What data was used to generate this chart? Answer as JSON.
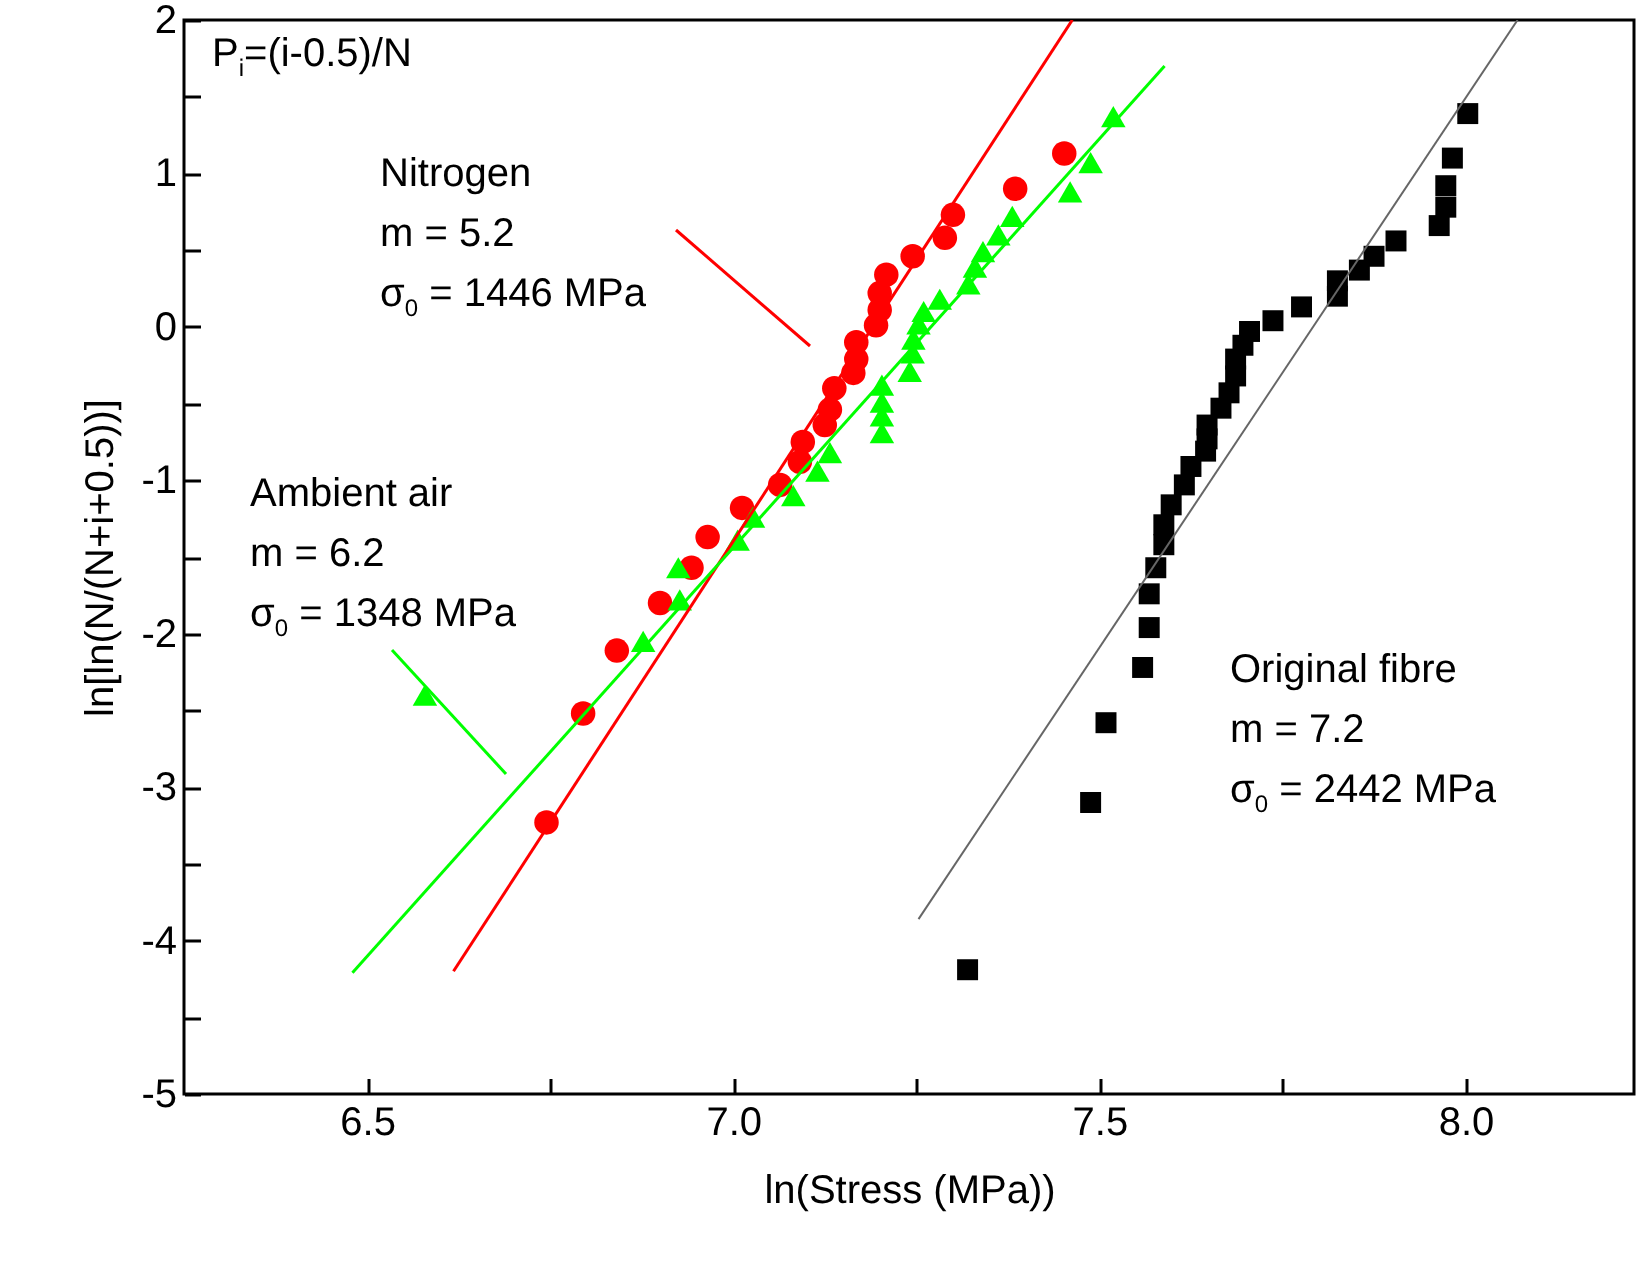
{
  "chart_data": {
    "type": "scatter",
    "xlabel": "ln(Stress (MPa))",
    "ylabel": "ln[ln(N/(N+i+0.5))]",
    "xlim": [
      6.25,
      8.23
    ],
    "ylim": [
      -5,
      2
    ],
    "xticks": [
      {
        "value": 6.5,
        "label": "6.5"
      },
      {
        "value": 6.75,
        "label": null
      },
      {
        "value": 7,
        "label": "7.0"
      },
      {
        "value": 7.25,
        "label": null
      },
      {
        "value": 7.5,
        "label": "7.5"
      },
      {
        "value": 7.75,
        "label": null
      },
      {
        "value": 8,
        "label": "8.0"
      }
    ],
    "yticks": [
      -5,
      {
        "value": -4.5,
        "label": null
      },
      -4,
      {
        "value": -3.5,
        "label": null
      },
      -3,
      {
        "value": -2.5,
        "label": null
      },
      -2,
      {
        "value": -1.5,
        "label": null
      },
      -1,
      {
        "value": -0.5,
        "label": null
      },
      0,
      {
        "value": 0.5,
        "label": null
      },
      1,
      {
        "value": 1.5,
        "label": null
      },
      2
    ],
    "annotations": [
      "P$_{i}$=(i-0.5)/N",
      "Nitrogen\nm = 5.2\nσ$_{0}$ = 1446 MPa",
      "Ambient air\nm = 6.2\nσ$_{0}$ = 1348 MPa",
      "Original fibre\nm = 7.2\nσ$_{0}$ = 2442 MPa"
    ],
    "series": [
      {
        "type": "scatter",
        "marker": "circle",
        "color": "#ff0000",
        "x": [
          6.745,
          6.795,
          6.841,
          6.9,
          6.943,
          6.965,
          7.012,
          7.064,
          7.091,
          7.095,
          7.125,
          7.132,
          7.138,
          7.164,
          7.168,
          7.168,
          7.195,
          7.2,
          7.2,
          7.209,
          7.245,
          7.289,
          7.3,
          7.385,
          7.452
        ],
        "values": [
          -3.23,
          -2.52,
          -2.11,
          -1.8,
          -1.57,
          -1.37,
          -1.18,
          -1.03,
          -0.88,
          -0.75,
          -0.64,
          -0.54,
          -0.4,
          -0.3,
          -0.21,
          -0.1,
          0.01,
          0.11,
          0.22,
          0.34,
          0.46,
          0.58,
          0.73,
          0.9,
          1.13
        ]
      },
      {
        "type": "scatter",
        "marker": "triangle",
        "color": "#00ff00",
        "x": [
          6.579,
          6.877,
          6.927,
          6.925,
          7.006,
          7.027,
          7.082,
          7.115,
          7.132,
          7.203,
          7.203,
          7.203,
          7.203,
          7.241,
          7.245,
          7.246,
          7.253,
          7.26,
          7.282,
          7.321,
          7.33,
          7.341,
          7.362,
          7.381,
          7.46,
          7.488,
          7.519
        ],
        "values": [
          -2.4,
          -2.05,
          -1.78,
          -1.57,
          -1.39,
          -1.24,
          -1.1,
          -0.94,
          -0.82,
          -0.69,
          -0.58,
          -0.49,
          -0.38,
          -0.29,
          -0.17,
          -0.08,
          0.02,
          0.1,
          0.18,
          0.28,
          0.39,
          0.49,
          0.6,
          0.72,
          0.88,
          1.07,
          1.37
        ]
      },
      {
        "type": "scatter",
        "marker": "square",
        "color": "#000000",
        "x": [
          7.32,
          7.488,
          7.509,
          7.559,
          7.568,
          7.568,
          7.577,
          7.588,
          7.588,
          7.598,
          7.616,
          7.625,
          7.645,
          7.647,
          7.647,
          7.666,
          7.677,
          7.686,
          7.686,
          7.696,
          7.705,
          7.737,
          7.776,
          7.825,
          7.825,
          7.855,
          7.875,
          7.905,
          7.964,
          7.973,
          7.973,
          7.982,
          8.003
        ],
        "values": [
          -4.19,
          -3.1,
          -2.58,
          -2.22,
          -1.96,
          -1.74,
          -1.57,
          -1.42,
          -1.29,
          -1.16,
          -1.03,
          -0.91,
          -0.81,
          -0.73,
          -0.64,
          -0.53,
          -0.43,
          -0.32,
          -0.21,
          -0.12,
          -0.03,
          0.04,
          0.13,
          0.2,
          0.3,
          0.37,
          0.46,
          0.56,
          0.66,
          0.78,
          0.92,
          1.1,
          1.39
        ]
      },
      {
        "type": "line",
        "color": "#ff0000",
        "x": [
          6.618,
          7.463
        ],
        "values": [
          -4.2,
          2.0
        ]
      },
      {
        "type": "line",
        "color": "#00ff00",
        "x": [
          6.48,
          7.589
        ],
        "values": [
          -4.21,
          1.7
        ]
      },
      {
        "type": "line",
        "color": "#666666",
        "x": [
          7.253,
          8.071
        ],
        "values": [
          -3.86,
          2.0
        ]
      }
    ]
  }
}
